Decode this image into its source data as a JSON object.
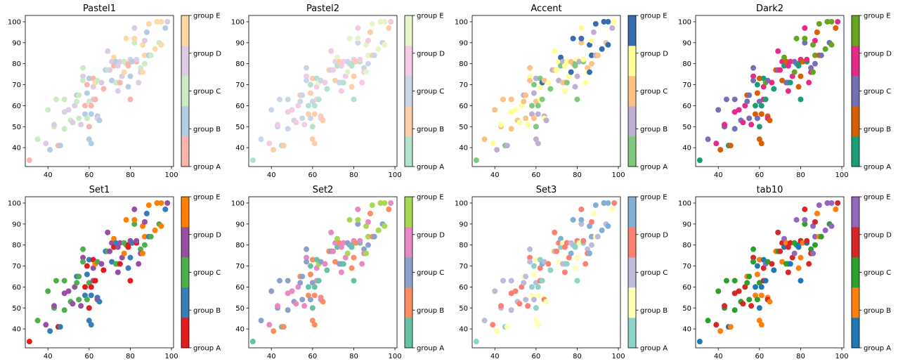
{
  "chart_data": {
    "type": "scatter",
    "layout": "grid 2x4 of scatter panels, each with a discrete colorbar on the right",
    "categories": [
      "group A",
      "group B",
      "group C",
      "group D",
      "group E"
    ],
    "xlim": [
      29,
      101
    ],
    "ylim": [
      31,
      103
    ],
    "x_ticks": [
      40,
      60,
      80,
      100
    ],
    "y_ticks": [
      40,
      50,
      60,
      70,
      80,
      90,
      100
    ],
    "points": [
      {
        "x": 31,
        "y": 34,
        "g": 0
      },
      {
        "x": 35,
        "y": 44,
        "g": 2
      },
      {
        "x": 39,
        "y": 42,
        "g": 3
      },
      {
        "x": 40,
        "y": 58,
        "g": 2
      },
      {
        "x": 41,
        "y": 39,
        "g": 1
      },
      {
        "x": 43,
        "y": 50,
        "g": 2
      },
      {
        "x": 43,
        "y": 51,
        "g": 3
      },
      {
        "x": 44,
        "y": 63,
        "g": 2
      },
      {
        "x": 45,
        "y": 41,
        "g": 0
      },
      {
        "x": 46,
        "y": 41,
        "g": 1
      },
      {
        "x": 48,
        "y": 49,
        "g": 2
      },
      {
        "x": 48,
        "y": 57,
        "g": 3
      },
      {
        "x": 48,
        "y": 63,
        "g": 2
      },
      {
        "x": 50,
        "y": 58,
        "g": 3
      },
      {
        "x": 51,
        "y": 53,
        "g": 2
      },
      {
        "x": 52,
        "y": 52,
        "g": 3
      },
      {
        "x": 53,
        "y": 60,
        "g": 3
      },
      {
        "x": 54,
        "y": 65,
        "g": 1
      },
      {
        "x": 54,
        "y": 62,
        "g": 2
      },
      {
        "x": 55,
        "y": 65,
        "g": 2
      },
      {
        "x": 55,
        "y": 54,
        "g": 2
      },
      {
        "x": 56,
        "y": 51,
        "g": 3
      },
      {
        "x": 57,
        "y": 74,
        "g": 3
      },
      {
        "x": 57,
        "y": 78,
        "g": 2
      },
      {
        "x": 57,
        "y": 72,
        "g": 2
      },
      {
        "x": 58,
        "y": 56,
        "g": 1
      },
      {
        "x": 58,
        "y": 60,
        "g": 0
      },
      {
        "x": 59,
        "y": 54,
        "g": 2
      },
      {
        "x": 59,
        "y": 70,
        "g": 0
      },
      {
        "x": 59,
        "y": 66,
        "g": 1
      },
      {
        "x": 60,
        "y": 73,
        "g": 1
      },
      {
        "x": 60,
        "y": 44,
        "g": 1
      },
      {
        "x": 60,
        "y": 62,
        "g": 2
      },
      {
        "x": 60,
        "y": 50,
        "g": 0
      },
      {
        "x": 61,
        "y": 42,
        "g": 1
      },
      {
        "x": 61,
        "y": 56,
        "g": 1
      },
      {
        "x": 61,
        "y": 60,
        "g": 0
      },
      {
        "x": 62,
        "y": 73,
        "g": 0
      },
      {
        "x": 62,
        "y": 63,
        "g": 3
      },
      {
        "x": 62,
        "y": 69,
        "g": 3
      },
      {
        "x": 63,
        "y": 71,
        "g": 4
      },
      {
        "x": 63,
        "y": 63,
        "g": 0
      },
      {
        "x": 64,
        "y": 72,
        "g": 2
      },
      {
        "x": 64,
        "y": 55,
        "g": 1
      },
      {
        "x": 64,
        "y": 54,
        "g": 3
      },
      {
        "x": 65,
        "y": 53,
        "g": 1
      },
      {
        "x": 66,
        "y": 71,
        "g": 3
      },
      {
        "x": 67,
        "y": 68,
        "g": 0
      },
      {
        "x": 68,
        "y": 77,
        "g": 1
      },
      {
        "x": 69,
        "y": 86,
        "g": 3
      },
      {
        "x": 69,
        "y": 77,
        "g": 2
      },
      {
        "x": 70,
        "y": 77,
        "g": 3
      },
      {
        "x": 71,
        "y": 72,
        "g": 1
      },
      {
        "x": 71,
        "y": 81,
        "g": 3
      },
      {
        "x": 72,
        "y": 83,
        "g": 4
      },
      {
        "x": 72,
        "y": 79,
        "g": 0
      },
      {
        "x": 73,
        "y": 71,
        "g": 2
      },
      {
        "x": 73,
        "y": 81,
        "g": 1
      },
      {
        "x": 74,
        "y": 67,
        "g": 3
      },
      {
        "x": 74,
        "y": 71,
        "g": 2
      },
      {
        "x": 74,
        "y": 79,
        "g": 3
      },
      {
        "x": 75,
        "y": 81,
        "g": 3
      },
      {
        "x": 75,
        "y": 71,
        "g": 0
      },
      {
        "x": 76,
        "y": 74,
        "g": 3
      },
      {
        "x": 77,
        "y": 81,
        "g": 2
      },
      {
        "x": 77,
        "y": 76,
        "g": 4
      },
      {
        "x": 78,
        "y": 80,
        "g": 2
      },
      {
        "x": 78,
        "y": 92,
        "g": 4
      },
      {
        "x": 79,
        "y": 79,
        "g": 0
      },
      {
        "x": 79,
        "y": 80,
        "g": 0
      },
      {
        "x": 79,
        "y": 69,
        "g": 1
      },
      {
        "x": 80,
        "y": 63,
        "g": 0
      },
      {
        "x": 80,
        "y": 74,
        "g": 1
      },
      {
        "x": 80,
        "y": 82,
        "g": 3
      },
      {
        "x": 81,
        "y": 81,
        "g": 1
      },
      {
        "x": 82,
        "y": 90,
        "g": 2
      },
      {
        "x": 82,
        "y": 92,
        "g": 4
      },
      {
        "x": 82,
        "y": 97,
        "g": 3
      },
      {
        "x": 83,
        "y": 81,
        "g": 0
      },
      {
        "x": 83,
        "y": 82,
        "g": 3
      },
      {
        "x": 84,
        "y": 71,
        "g": 3
      },
      {
        "x": 85,
        "y": 78,
        "g": 2
      },
      {
        "x": 85,
        "y": 76,
        "g": 3
      },
      {
        "x": 86,
        "y": 76,
        "g": 4
      },
      {
        "x": 86,
        "y": 89,
        "g": 4
      },
      {
        "x": 87,
        "y": 84,
        "g": 4
      },
      {
        "x": 87,
        "y": 91,
        "g": 3
      },
      {
        "x": 87,
        "y": 80,
        "g": 2
      },
      {
        "x": 88,
        "y": 95,
        "g": 1
      },
      {
        "x": 89,
        "y": 84,
        "g": 1
      },
      {
        "x": 89,
        "y": 99,
        "g": 4
      },
      {
        "x": 90,
        "y": 84,
        "g": 2
      },
      {
        "x": 92,
        "y": 87,
        "g": 4
      },
      {
        "x": 93,
        "y": 100,
        "g": 4
      },
      {
        "x": 93,
        "y": 100,
        "g": 4
      },
      {
        "x": 94,
        "y": 90,
        "g": 2
      },
      {
        "x": 95,
        "y": 100,
        "g": 4
      },
      {
        "x": 95,
        "y": 89,
        "g": 4
      },
      {
        "x": 97,
        "y": 97,
        "g": 1
      },
      {
        "x": 98,
        "y": 100,
        "g": 3
      }
    ],
    "panels": [
      {
        "title": "Pastel1",
        "colors": [
          "#fbb4ae",
          "#b3cde3",
          "#ccebc5",
          "#decbe4",
          "#fed9a6"
        ]
      },
      {
        "title": "Pastel2",
        "colors": [
          "#b3e2cd",
          "#fdcdac",
          "#cbd5e8",
          "#f4cae4",
          "#e6f5c9"
        ]
      },
      {
        "title": "Accent",
        "colors": [
          "#7fc97f",
          "#beaed4",
          "#fdc086",
          "#ffff99",
          "#386cb0"
        ]
      },
      {
        "title": "Dark2",
        "colors": [
          "#1b9e77",
          "#d95f02",
          "#7570b3",
          "#e7298a",
          "#66a61e"
        ]
      },
      {
        "title": "Set1",
        "colors": [
          "#e41a1c",
          "#377eb8",
          "#4daf4a",
          "#984ea3",
          "#ff7f00"
        ]
      },
      {
        "title": "Set2",
        "colors": [
          "#66c2a5",
          "#fc8d62",
          "#8da0cb",
          "#e78ac3",
          "#a6d854"
        ]
      },
      {
        "title": "Set3",
        "colors": [
          "#8dd3c7",
          "#ffffb3",
          "#bebada",
          "#fb8072",
          "#80b1d3"
        ]
      },
      {
        "title": "tab10",
        "colors": [
          "#1f77b4",
          "#ff7f0e",
          "#2ca02c",
          "#d62728",
          "#9467bd"
        ]
      }
    ]
  }
}
